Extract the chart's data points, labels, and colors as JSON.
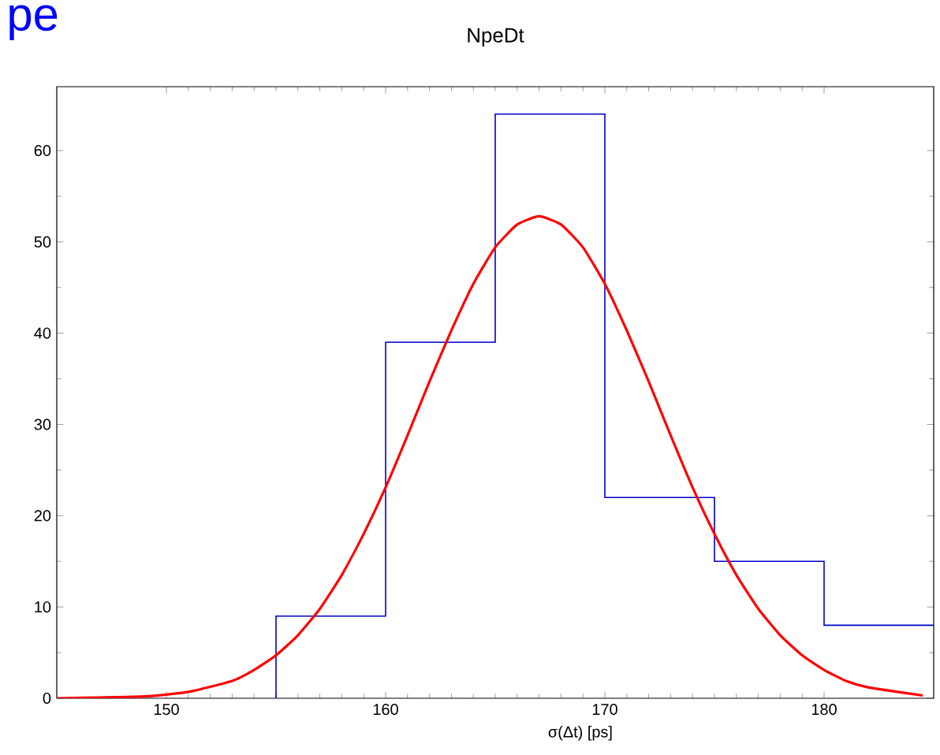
{
  "chart_data": {
    "type": "histogram",
    "title": "NpeDt",
    "xlabel": "σ(Δt)   [ps]",
    "annotations": [
      "pe"
    ],
    "bins": [
      155,
      160,
      165,
      170,
      175,
      180,
      185
    ],
    "xlim": [
      145,
      185
    ],
    "ylim": [
      0,
      67
    ],
    "xticks": [
      150,
      160,
      170,
      180
    ],
    "yticks": [
      0,
      10,
      20,
      30,
      40,
      50,
      60
    ],
    "grid": false,
    "series": [
      {
        "color": "#0000cc",
        "values": [
          9,
          39,
          64,
          22,
          15,
          8
        ]
      },
      {
        "type": "line",
        "color": "#ff0000",
        "x": [
          145,
          149,
          151,
          153,
          154,
          155,
          156,
          157,
          158,
          159,
          160,
          161,
          162,
          163,
          164,
          165,
          166,
          167,
          168,
          169,
          170,
          171,
          172,
          173,
          174,
          175,
          176,
          177,
          178,
          179,
          180,
          181,
          182,
          184.5
        ],
        "values": [
          0,
          0.2,
          0.7,
          1.9,
          3.1,
          4.7,
          6.9,
          9.8,
          13.5,
          18.0,
          23.1,
          28.8,
          34.7,
          40.3,
          45.4,
          49.4,
          51.9,
          52.8,
          51.9,
          49.4,
          45.4,
          40.3,
          34.7,
          28.8,
          23.1,
          18.0,
          13.5,
          9.8,
          6.9,
          4.7,
          3.1,
          1.9,
          1.2,
          0.3
        ]
      }
    ]
  }
}
